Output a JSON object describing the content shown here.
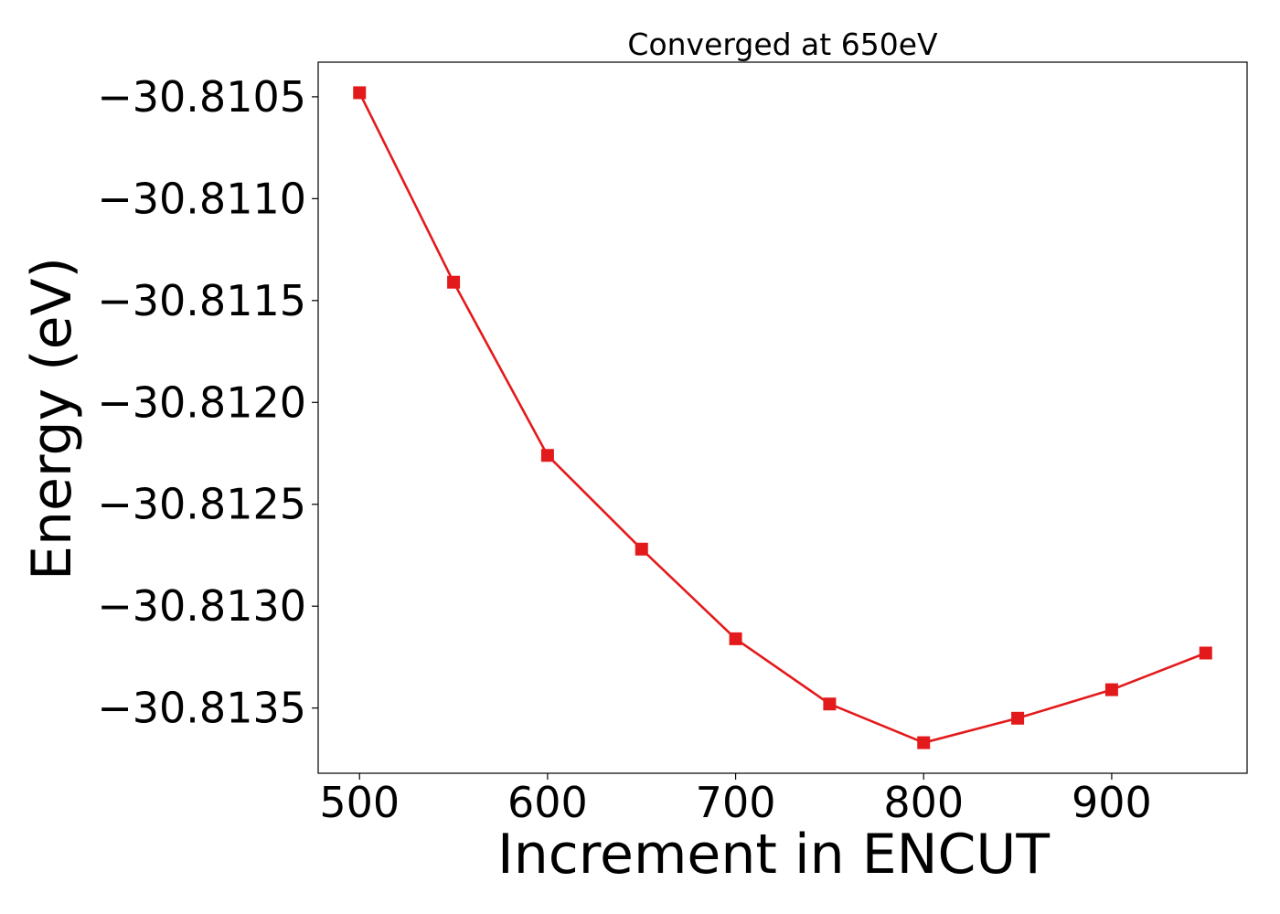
{
  "chart_data": {
    "type": "line",
    "title": "Converged at 650eV",
    "xlabel": "Increment in ENCUT",
    "ylabel": "Energy (eV)",
    "xlim": [
      478,
      972
    ],
    "ylim": [
      -30.81382,
      -30.81033
    ],
    "xticks": [
      500,
      600,
      700,
      800,
      900
    ],
    "xtick_labels": [
      "500",
      "600",
      "700",
      "800",
      "900"
    ],
    "yticks": [
      -30.8105,
      -30.811,
      -30.8115,
      -30.812,
      -30.8125,
      -30.813,
      -30.8135
    ],
    "ytick_labels": [
      "−30.8105",
      "−30.8110",
      "−30.8115",
      "−30.8120",
      "−30.8125",
      "−30.8130",
      "−30.8135"
    ],
    "grid": false,
    "series": [
      {
        "color": "#e31a1c",
        "marker": "square",
        "x": [
          500,
          550,
          600,
          650,
          700,
          750,
          800,
          850,
          900,
          950
        ],
        "y": [
          -30.81048,
          -30.81141,
          -30.81226,
          -30.81272,
          -30.81316,
          -30.81348,
          -30.81367,
          -30.81355,
          -30.81341,
          -30.81323
        ]
      }
    ]
  }
}
